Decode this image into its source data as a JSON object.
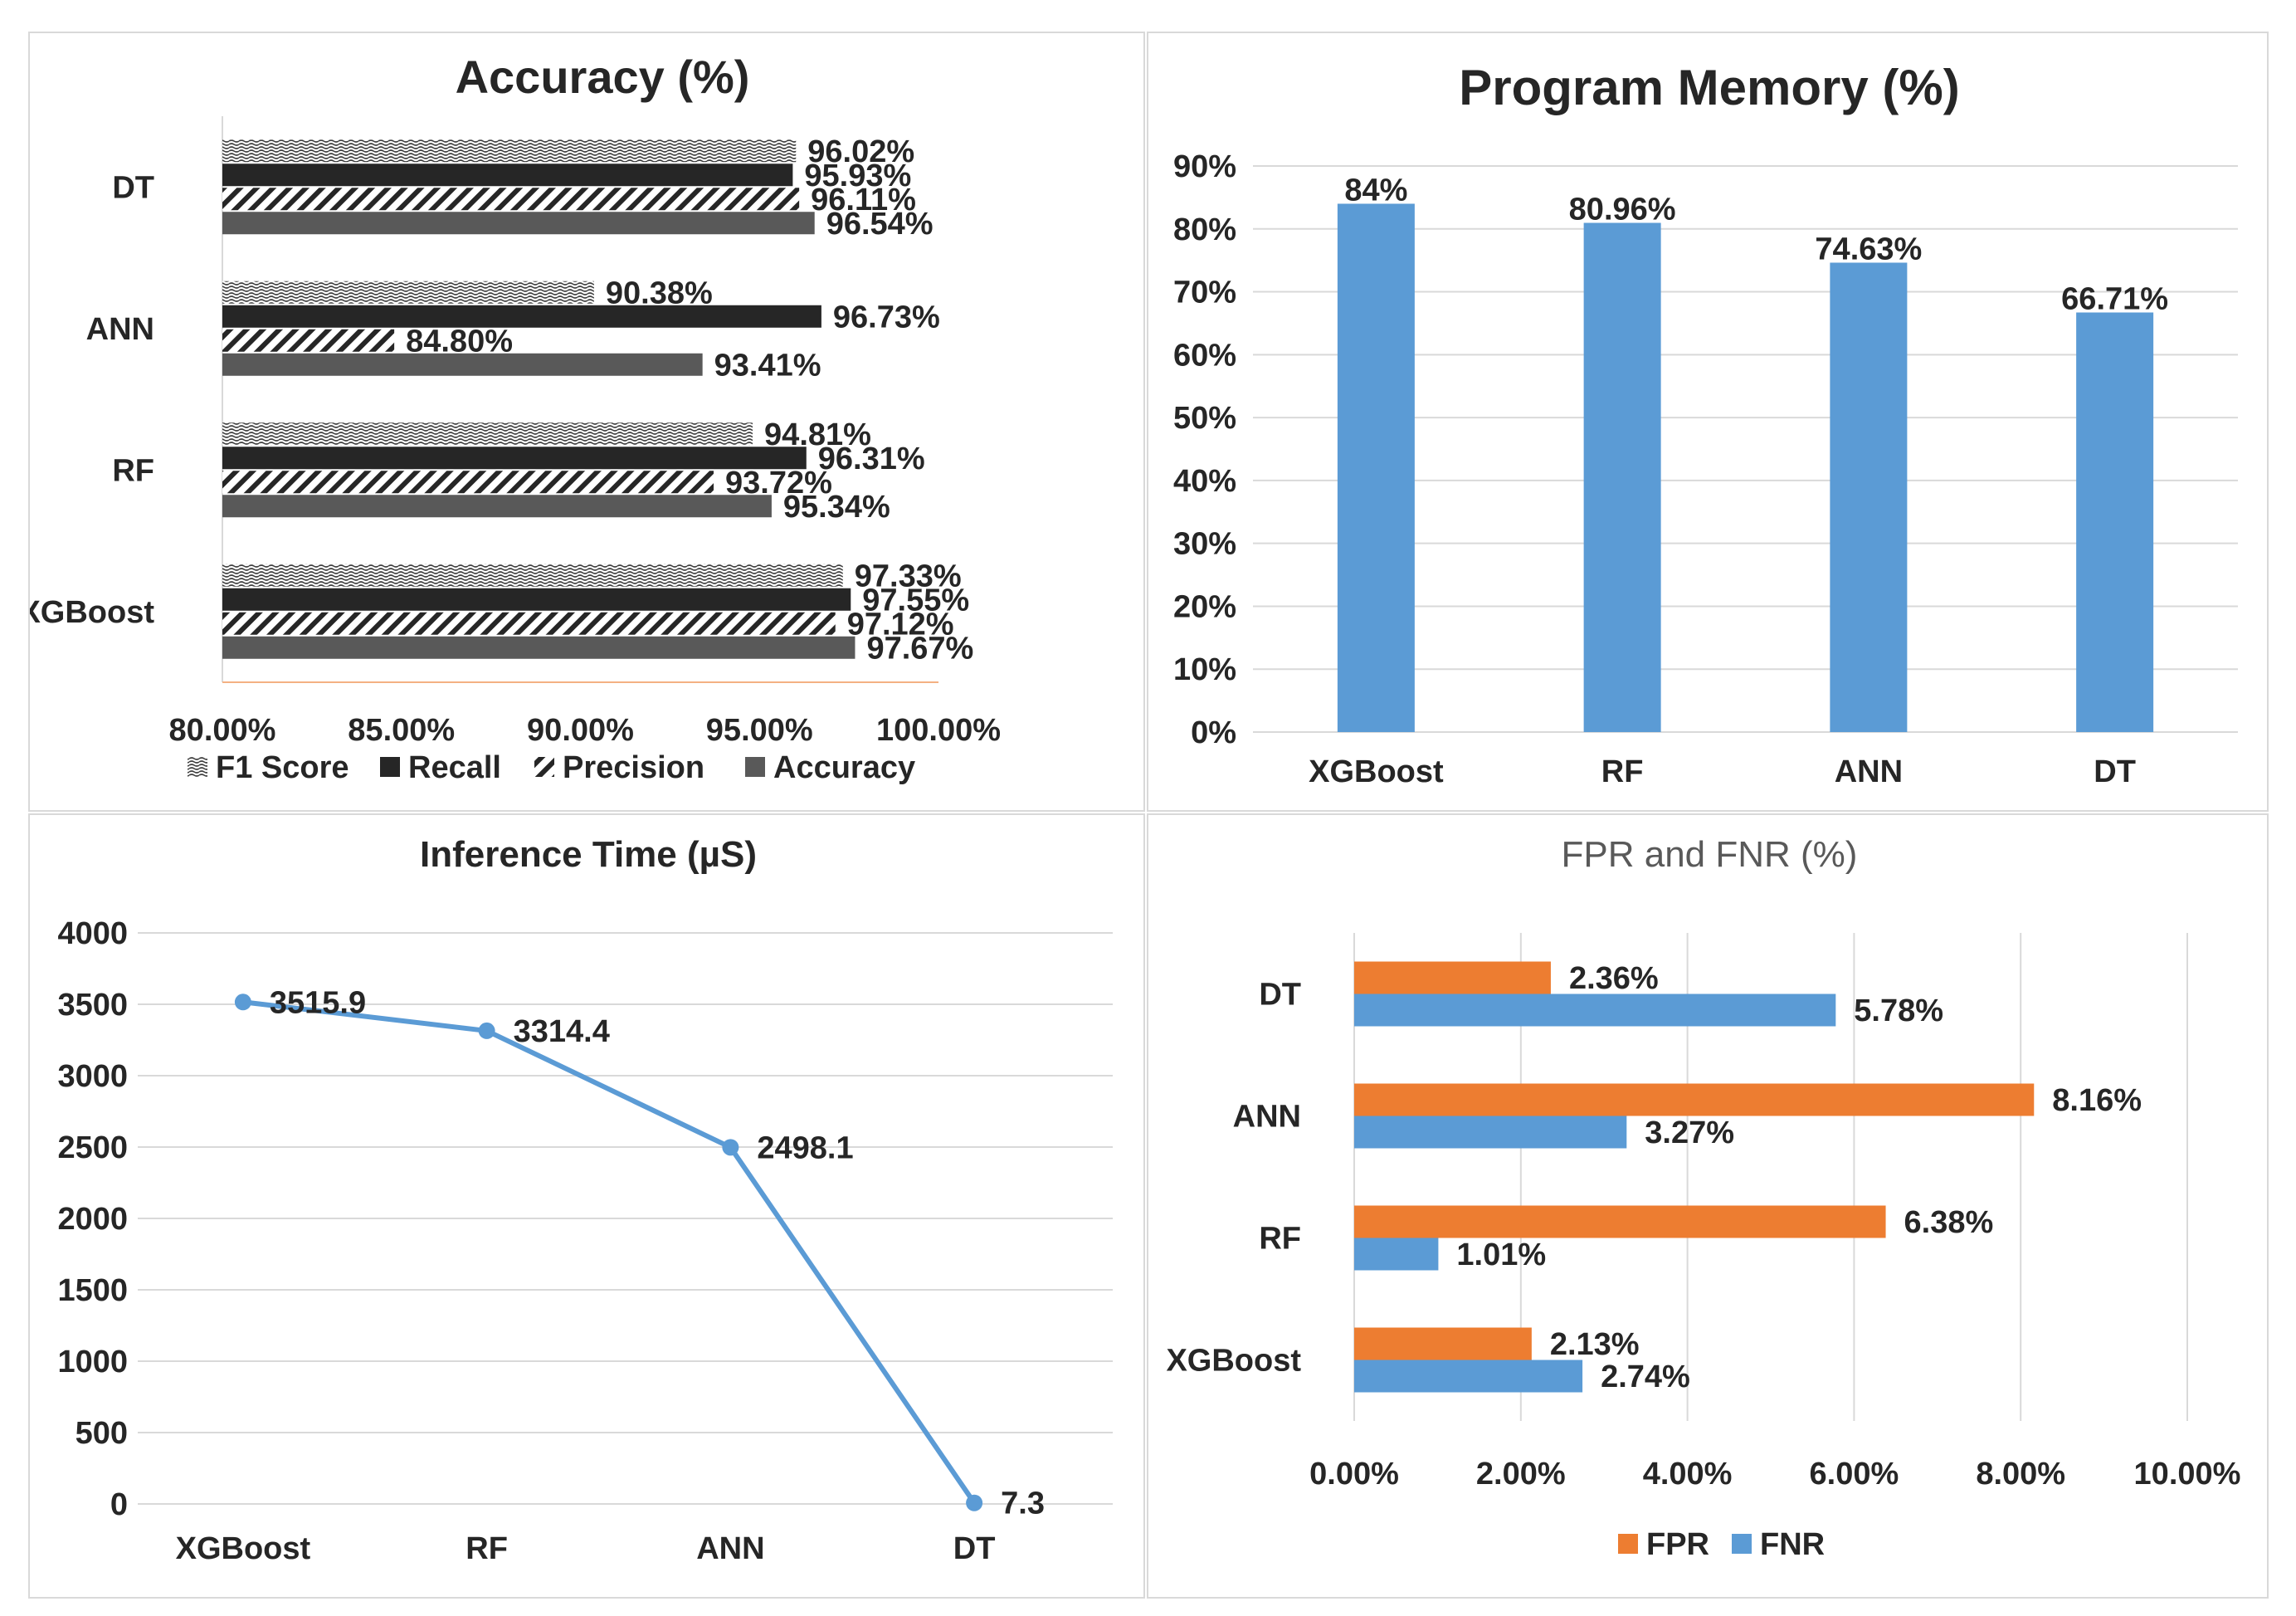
{
  "colors": {
    "blue": "#5b9bd5",
    "orange": "#ed7d31",
    "dark": "#262626",
    "mid": "#595959",
    "grid": "#d9d9d9",
    "title_gray": "#595959"
  },
  "chart_data": [
    {
      "id": "accuracy",
      "type": "bar",
      "orientation": "horizontal",
      "title": "Accuracy (%)",
      "categories": [
        "XGBoost",
        "RF",
        "ANN",
        "DT"
      ],
      "series": [
        {
          "name": "F1 Score",
          "pattern": "wave",
          "values": [
            97.33,
            94.81,
            90.38,
            96.02
          ],
          "labels": [
            "97.33%",
            "94.81%",
            "90.38%",
            "96.02%"
          ]
        },
        {
          "name": "Recall",
          "pattern": "solid-dark",
          "values": [
            97.55,
            96.31,
            96.73,
            95.93
          ],
          "labels": [
            "97.55%",
            "96.31%",
            "96.73%",
            "95.93%"
          ]
        },
        {
          "name": "Precision",
          "pattern": "diagonal",
          "values": [
            97.12,
            93.72,
            84.8,
            96.11
          ],
          "labels": [
            "97.12%",
            "93.72%",
            "84.80%",
            "96.11%"
          ]
        },
        {
          "name": "Accuracy",
          "pattern": "solid-gray",
          "values": [
            97.67,
            95.34,
            93.41,
            96.54
          ],
          "labels": [
            "97.67%",
            "95.34%",
            "93.41%",
            "96.54%"
          ]
        }
      ],
      "xlim": [
        80,
        100
      ],
      "ticks": [
        80,
        85,
        90,
        95,
        100
      ],
      "tick_labels": [
        "80.00%",
        "85.00%",
        "90.00%",
        "95.00%",
        "100.00%"
      ],
      "legend": "bottom"
    },
    {
      "id": "memory",
      "type": "bar",
      "orientation": "vertical",
      "title": "Program Memory (%)",
      "categories": [
        "XGBoost",
        "RF",
        "ANN",
        "DT"
      ],
      "values": [
        84,
        80.96,
        74.63,
        66.71
      ],
      "labels": [
        "84%",
        "80.96%",
        "74.63%",
        "66.71%"
      ],
      "ylim": [
        0,
        90
      ],
      "ticks": [
        0,
        10,
        20,
        30,
        40,
        50,
        60,
        70,
        80,
        90
      ],
      "tick_labels": [
        "0%",
        "10%",
        "20%",
        "30%",
        "40%",
        "50%",
        "60%",
        "70%",
        "80%",
        "90%"
      ],
      "grid": true
    },
    {
      "id": "inference",
      "type": "line",
      "title": "Inference Time (µS)",
      "categories": [
        "XGBoost",
        "RF",
        "ANN",
        "DT"
      ],
      "values": [
        3515.9,
        3314.4,
        2498.1,
        7.3
      ],
      "labels": [
        "3515.9",
        "3314.4",
        "2498.1",
        "7.3"
      ],
      "ylim": [
        0,
        4000
      ],
      "ticks": [
        0,
        500,
        1000,
        1500,
        2000,
        2500,
        3000,
        3500,
        4000
      ],
      "tick_labels": [
        "0",
        "500",
        "1000",
        "1500",
        "2000",
        "2500",
        "3000",
        "3500",
        "4000"
      ],
      "grid": true
    },
    {
      "id": "fprfnr",
      "type": "bar",
      "orientation": "horizontal",
      "title": "FPR and FNR (%)",
      "categories": [
        "XGBoost",
        "RF",
        "ANN",
        "DT"
      ],
      "series": [
        {
          "name": "FPR",
          "values": [
            2.13,
            6.38,
            8.16,
            2.36
          ],
          "labels": [
            "2.13%",
            "6.38%",
            "8.16%",
            "2.36%"
          ]
        },
        {
          "name": "FNR",
          "values": [
            2.74,
            1.01,
            3.27,
            5.78
          ],
          "labels": [
            "2.74%",
            "1.01%",
            "3.27%",
            "5.78%"
          ]
        }
      ],
      "xlim": [
        0,
        10
      ],
      "ticks": [
        0,
        2,
        4,
        6,
        8,
        10
      ],
      "tick_labels": [
        "0.00%",
        "2.00%",
        "4.00%",
        "6.00%",
        "8.00%",
        "10.00%"
      ],
      "grid": true,
      "legend": "bottom"
    }
  ]
}
